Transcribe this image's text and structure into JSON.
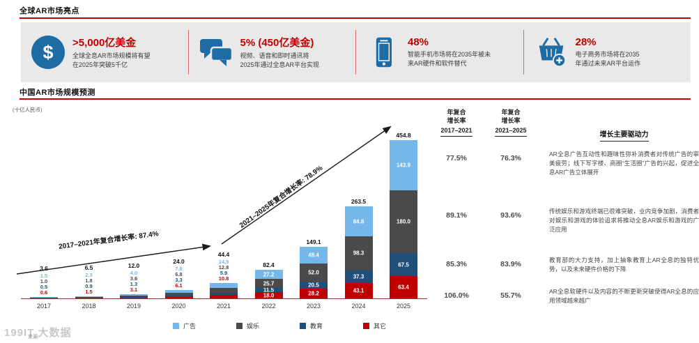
{
  "page": {
    "section1_title": "全球AR市场亮点",
    "section2_title": "中国AR市场规模预测",
    "unit_label": "(十亿人民币)",
    "source_label": "来源:",
    "watermark": "199IT 大数据"
  },
  "highlights": [
    {
      "icon": "dollar-icon",
      "headline": ">5,000亿美金",
      "lines": [
        "全球全息AR市场规模将有望",
        "在2025年突破5千亿"
      ]
    },
    {
      "icon": "chat-bubbles-icon",
      "headline": "5% (450亿美金)",
      "lines": [
        "视频、语音和即时通讯将",
        "2025年通过全息AR平台实现"
      ]
    },
    {
      "icon": "smartphone-icon",
      "headline": "48%",
      "lines": [
        "智能手机市场将在2035年被未",
        "来AR硬件和软件替代"
      ]
    },
    {
      "icon": "shopping-basket-icon",
      "headline": "28%",
      "lines": [
        "电子商务市场将在2035",
        "年通过未来AR平台运作"
      ]
    }
  ],
  "chart_data": {
    "type": "bar",
    "stacked": true,
    "title": "中国AR市场规模预测",
    "ylabel": "十亿人民币",
    "xlabel": "",
    "ylim": [
      0,
      460
    ],
    "grid": false,
    "legend_position": "bottom",
    "categories": [
      "2017",
      "2018",
      "2019",
      "2020",
      "2021",
      "2022",
      "2023",
      "2024",
      "2025"
    ],
    "series": [
      {
        "name": "广告",
        "color": "#74B7E8",
        "values": [
          1.5,
          2.3,
          4.0,
          7.8,
          14.9,
          27.2,
          48.4,
          84.8,
          143.9
        ]
      },
      {
        "name": "娱乐",
        "color": "#4A4A4C",
        "values": [
          1.0,
          1.8,
          3.6,
          6.8,
          12.8,
          25.7,
          52.0,
          98.3,
          180.0
        ]
      },
      {
        "name": "教育",
        "color": "#1F4E79",
        "values": [
          0.5,
          0.9,
          1.3,
          3.3,
          5.9,
          11.5,
          20.5,
          37.3,
          67.5
        ]
      },
      {
        "name": "其它",
        "color": "#C00000",
        "values": [
          0.6,
          1.5,
          3.1,
          6.1,
          10.8,
          18.0,
          28.2,
          43.1,
          63.4
        ]
      }
    ],
    "totals": [
      3.6,
      6.5,
      12.0,
      24.0,
      44.4,
      82.4,
      149.1,
      263.5,
      454.8
    ],
    "annotations": [
      {
        "text": "2017–2021年复合增长率: 87.4%"
      },
      {
        "text": "2021–2025年复合增长率: 78.9%"
      }
    ]
  },
  "cagr": {
    "header_line1": "年复合",
    "header_line2": "增长率",
    "range1": "2017–2021",
    "range2": "2021–2025",
    "drivers_header": "增长主要驱动力",
    "rows": [
      {
        "c1": "77.5%",
        "c2": "76.3%",
        "driver": "AR全息广告互动性和趣味性弥补消费者对传统广告的审美疲劳；线下写字楼、商圈“生活圈”广告的兴起，促进全息AR广告立体展开"
      },
      {
        "c1": "89.1%",
        "c2": "93.6%",
        "driver": "传统娱乐和游戏终端已很难突破，业内竞争加剧，消费者对娱乐和游戏的体验追求将推动全息AR娱乐和游戏的广泛应用"
      },
      {
        "c1": "85.3%",
        "c2": "83.9%",
        "driver": "教育部的大力支持，加上抽象教育上AR全息的独特优势，以及未来硬件价格的下降"
      },
      {
        "c1": "106.0%",
        "c2": "55.7%",
        "driver": "AR全息软硬件以及内容的不断更新突破使得AR全息的应用领域越来越广"
      }
    ]
  }
}
